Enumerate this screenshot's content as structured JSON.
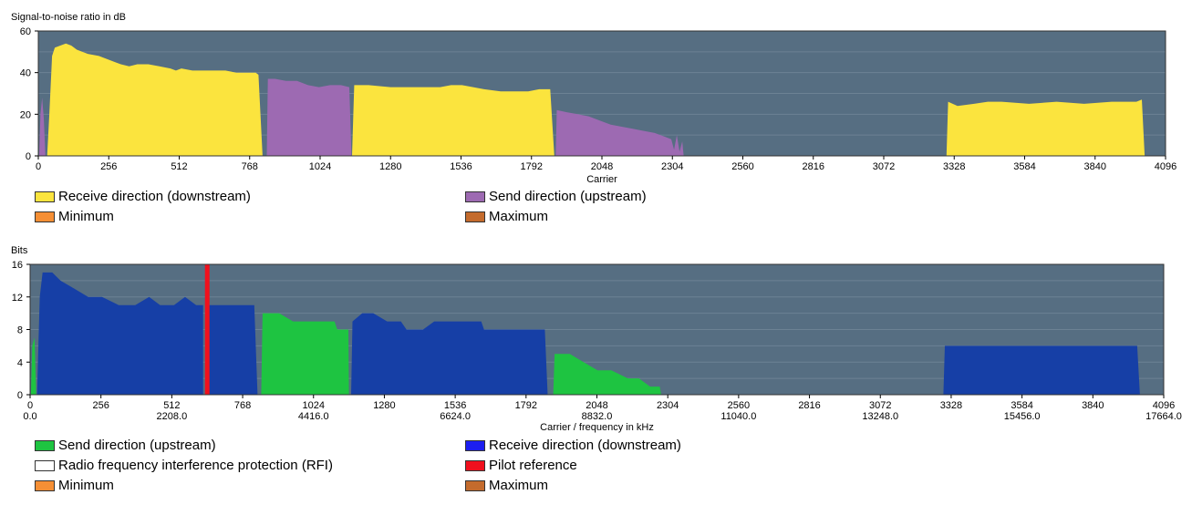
{
  "chart_data": [
    {
      "type": "area",
      "ylabel": "Signal-to-noise ratio in dB",
      "xlabel": "Carrier",
      "xlim": [
        0,
        4096
      ],
      "ylim": [
        0,
        60
      ],
      "yticks": [
        0,
        20,
        40,
        60
      ],
      "xticks": [
        0,
        256,
        512,
        768,
        1024,
        1280,
        1536,
        1792,
        2048,
        2304,
        2560,
        2816,
        3072,
        3328,
        3584,
        3840,
        4096
      ],
      "background": "#566e82",
      "grid": true,
      "series": [
        {
          "name": "Receive direction (downstream)",
          "color": "#fbe43e",
          "points": [
            [
              32,
              0
            ],
            [
              40,
              20
            ],
            [
              50,
              48
            ],
            [
              60,
              52
            ],
            [
              80,
              53
            ],
            [
              100,
              54
            ],
            [
              120,
              53
            ],
            [
              140,
              51
            ],
            [
              180,
              49
            ],
            [
              220,
              48
            ],
            [
              260,
              46
            ],
            [
              300,
              44
            ],
            [
              330,
              43
            ],
            [
              360,
              44
            ],
            [
              400,
              44
            ],
            [
              440,
              43
            ],
            [
              480,
              42
            ],
            [
              500,
              41
            ],
            [
              520,
              42
            ],
            [
              560,
              41
            ],
            [
              600,
              41
            ],
            [
              640,
              41
            ],
            [
              680,
              41
            ],
            [
              720,
              40
            ],
            [
              760,
              40
            ],
            [
              790,
              40
            ],
            [
              800,
              39
            ],
            [
              815,
              0
            ]
          ]
        },
        {
          "name": "Receive direction (downstream)",
          "color": "#fbe43e",
          "points": [
            [
              1140,
              0
            ],
            [
              1148,
              34
            ],
            [
              1200,
              34
            ],
            [
              1280,
              33
            ],
            [
              1330,
              33
            ],
            [
              1400,
              33
            ],
            [
              1460,
              33
            ],
            [
              1500,
              34
            ],
            [
              1540,
              34
            ],
            [
              1580,
              33
            ],
            [
              1620,
              32
            ],
            [
              1680,
              31
            ],
            [
              1740,
              31
            ],
            [
              1780,
              31
            ],
            [
              1820,
              32
            ],
            [
              1860,
              32
            ],
            [
              1875,
              0
            ]
          ]
        },
        {
          "name": "Receive direction (downstream)",
          "color": "#fbe43e",
          "points": [
            [
              3300,
              0
            ],
            [
              3306,
              26
            ],
            [
              3340,
              24
            ],
            [
              3400,
              25
            ],
            [
              3450,
              26
            ],
            [
              3500,
              26
            ],
            [
              3600,
              25
            ],
            [
              3700,
              26
            ],
            [
              3800,
              25
            ],
            [
              3900,
              26
            ],
            [
              3990,
              26
            ],
            [
              4010,
              27
            ],
            [
              4020,
              0
            ]
          ]
        },
        {
          "name": "Send direction (upstream)",
          "color": "#9d6ab2",
          "points": [
            [
              3,
              0
            ],
            [
              8,
              20
            ],
            [
              14,
              28
            ],
            [
              20,
              18
            ],
            [
              26,
              0
            ]
          ]
        },
        {
          "name": "Send direction (upstream)",
          "color": "#9d6ab2",
          "points": [
            [
              830,
              0
            ],
            [
              834,
              37
            ],
            [
              860,
              37
            ],
            [
              900,
              36
            ],
            [
              940,
              36
            ],
            [
              980,
              34
            ],
            [
              1020,
              33
            ],
            [
              1060,
              34
            ],
            [
              1100,
              34
            ],
            [
              1130,
              33
            ],
            [
              1138,
              0
            ]
          ]
        },
        {
          "name": "Send direction (upstream)",
          "color": "#9d6ab2",
          "points": [
            [
              1880,
              0
            ],
            [
              1884,
              22
            ],
            [
              1920,
              21
            ],
            [
              1960,
              20
            ],
            [
              2000,
              19
            ],
            [
              2040,
              17
            ],
            [
              2080,
              15
            ],
            [
              2120,
              14
            ],
            [
              2160,
              13
            ],
            [
              2200,
              12
            ],
            [
              2240,
              11
            ],
            [
              2280,
              9
            ],
            [
              2300,
              8
            ],
            [
              2310,
              3
            ],
            [
              2320,
              10
            ],
            [
              2330,
              2
            ],
            [
              2340,
              7
            ],
            [
              2345,
              0
            ]
          ]
        }
      ]
    },
    {
      "type": "area",
      "ylabel": "Bits",
      "xlabel": "Carrier / frequency in kHz",
      "xlim": [
        0,
        4096
      ],
      "ylim": [
        0,
        16
      ],
      "yticks": [
        0,
        4,
        8,
        12,
        16
      ],
      "xticks": [
        0,
        256,
        512,
        768,
        1024,
        1280,
        1536,
        1792,
        2048,
        2304,
        2560,
        2816,
        3072,
        3328,
        3584,
        3840,
        4096
      ],
      "xticks_freq": [
        "0.0",
        "2208.0",
        "4416.0",
        "6624.0",
        "8832.0",
        "11040.0",
        "13248.0",
        "15456.0",
        "17664.0"
      ],
      "background": "#566e82",
      "grid": true,
      "pilot_carrier": 640,
      "series": [
        {
          "name": "Send direction (upstream)",
          "color": "#1ec441",
          "points": [
            [
              3,
              0
            ],
            [
              8,
              6
            ],
            [
              16,
              7
            ],
            [
              22,
              0
            ]
          ]
        },
        {
          "name": "Send direction (upstream)",
          "color": "#1ec441",
          "points": [
            [
              835,
              0
            ],
            [
              840,
              10
            ],
            [
              900,
              10
            ],
            [
              950,
              9
            ],
            [
              1000,
              9
            ],
            [
              1050,
              9
            ],
            [
              1100,
              9
            ],
            [
              1110,
              8
            ],
            [
              1150,
              8
            ],
            [
              1152,
              0
            ]
          ]
        },
        {
          "name": "Send direction (upstream)",
          "color": "#1ec441",
          "points": [
            [
              1890,
              0
            ],
            [
              1895,
              5
            ],
            [
              1950,
              5
            ],
            [
              2000,
              4
            ],
            [
              2050,
              3
            ],
            [
              2100,
              3
            ],
            [
              2160,
              2
            ],
            [
              2200,
              2
            ],
            [
              2240,
              1
            ],
            [
              2275,
              1
            ],
            [
              2280,
              0
            ]
          ]
        },
        {
          "name": "Receive direction (downstream)",
          "color": "#163fa6",
          "points": [
            [
              25,
              0
            ],
            [
              35,
              12
            ],
            [
              45,
              15
            ],
            [
              80,
              15
            ],
            [
              110,
              14
            ],
            [
              160,
              13
            ],
            [
              210,
              12
            ],
            [
              260,
              12
            ],
            [
              320,
              11
            ],
            [
              380,
              11
            ],
            [
              430,
              12
            ],
            [
              470,
              11
            ],
            [
              520,
              11
            ],
            [
              560,
              12
            ],
            [
              600,
              11
            ],
            [
              625,
              11
            ],
            [
              625,
              0
            ]
          ]
        },
        {
          "name": "Receive direction (downstream)",
          "color": "#163fa6",
          "points": [
            [
              645,
              0
            ],
            [
              645,
              11
            ],
            [
              700,
              11
            ],
            [
              750,
              11
            ],
            [
              810,
              11
            ],
            [
              822,
              0
            ]
          ]
        },
        {
          "name": "Receive direction (downstream)",
          "color": "#163fa6",
          "points": [
            [
              1160,
              0
            ],
            [
              1165,
              9
            ],
            [
              1200,
              10
            ],
            [
              1240,
              10
            ],
            [
              1290,
              9
            ],
            [
              1340,
              9
            ],
            [
              1360,
              8
            ],
            [
              1420,
              8
            ],
            [
              1460,
              9
            ],
            [
              1500,
              9
            ],
            [
              1560,
              9
            ],
            [
              1600,
              9
            ],
            [
              1630,
              9
            ],
            [
              1640,
              8
            ],
            [
              1700,
              8
            ],
            [
              1760,
              8
            ],
            [
              1800,
              8
            ],
            [
              1860,
              8
            ],
            [
              1870,
              0
            ]
          ]
        },
        {
          "name": "Receive direction (downstream)",
          "color": "#163fa6",
          "points": [
            [
              3300,
              0
            ],
            [
              3305,
              6
            ],
            [
              3350,
              6
            ],
            [
              3400,
              6
            ],
            [
              3500,
              6
            ],
            [
              3600,
              6
            ],
            [
              3700,
              6
            ],
            [
              3800,
              6
            ],
            [
              3900,
              6
            ],
            [
              4000,
              6
            ],
            [
              4010,
              0
            ]
          ]
        }
      ]
    }
  ],
  "legend_top": [
    {
      "label": "Receive direction (downstream)",
      "color": "#fbe43e"
    },
    {
      "label": "Send direction (upstream)",
      "color": "#9d6ab2"
    },
    {
      "label": "Minimum",
      "color": "#f58f35"
    },
    {
      "label": "Maximum",
      "color": "#c46b2d"
    }
  ],
  "legend_bottom": [
    {
      "label": "Send direction (upstream)",
      "color": "#1ec441"
    },
    {
      "label": "Receive direction (downstream)",
      "color": "#1c1ef0"
    },
    {
      "label": "Radio frequency interference protection (RFI)",
      "color": "#ffffff"
    },
    {
      "label": "Pilot reference",
      "color": "#f0101d"
    },
    {
      "label": "Minimum",
      "color": "#f58f35"
    },
    {
      "label": "Maximum",
      "color": "#c46b2d"
    }
  ],
  "pilot_color": "#f0101d"
}
